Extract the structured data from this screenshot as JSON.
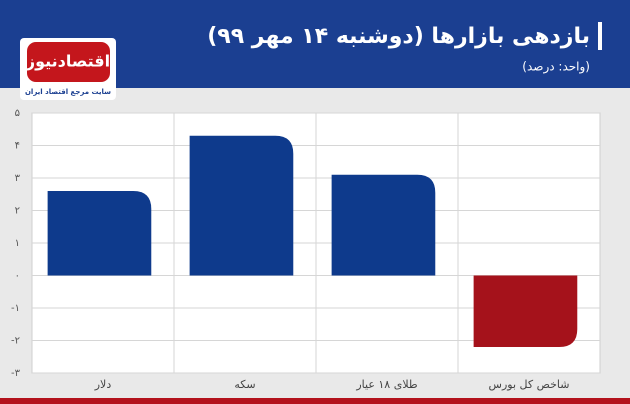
{
  "logo": {
    "name": "اقتصادنیوز",
    "tagline": "سایت مرجع اقتصاد ایران"
  },
  "chart_data": {
    "type": "bar",
    "title": "بازدهی بازارها (دوشنبه ۱۴ مهر ۹۹)",
    "subtitle": "(واحد: درصد)",
    "categories": [
      "دلار",
      "سکه",
      "طلای ۱۸ عیار",
      "شاخص کل بورس"
    ],
    "values": [
      2.6,
      4.3,
      3.1,
      -2.2
    ],
    "colors": [
      "#0e3a8c",
      "#0e3a8c",
      "#0e3a8c",
      "#a5121b"
    ],
    "ylim": [
      -3,
      5
    ],
    "yticks": [
      {
        "value": -3,
        "label": "-۳"
      },
      {
        "value": -2,
        "label": "-۲"
      },
      {
        "value": -1,
        "label": "-۱"
      },
      {
        "value": 0,
        "label": "۰"
      },
      {
        "value": 1,
        "label": "۱"
      },
      {
        "value": 2,
        "label": "۲"
      },
      {
        "value": 3,
        "label": "۳"
      },
      {
        "value": 4,
        "label": "۴"
      },
      {
        "value": 5,
        "label": "۵"
      }
    ],
    "grid": true
  }
}
